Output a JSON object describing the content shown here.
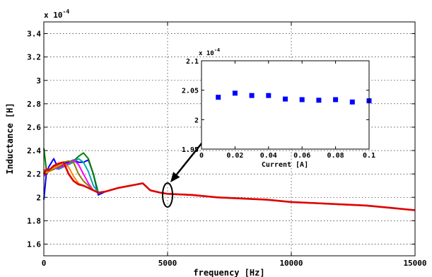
{
  "chart_data": [
    {
      "id": "main",
      "type": "line",
      "xlabel": "frequency [Hz]",
      "ylabel": "Inductance [H]",
      "exponent_label": "x 10",
      "exponent_power": "-4",
      "xlim": [
        0,
        15000
      ],
      "ylim": [
        1.5,
        3.5
      ],
      "y_scale_factor": 0.0001,
      "grid": true,
      "x_ticks": [
        0,
        5000,
        10000,
        15000
      ],
      "x_tick_labels": [
        "0",
        "5000",
        "10000",
        "15000"
      ],
      "y_ticks": [
        1.6,
        1.8,
        2.0,
        2.2,
        2.4,
        2.6,
        2.8,
        3.0,
        3.2,
        3.4
      ],
      "y_tick_labels": [
        "1.6",
        "1.8",
        "2",
        "2.2",
        "2.4",
        "2.6",
        "2.8",
        "3",
        "3.2",
        "3.4"
      ],
      "annotation": {
        "type": "ellipse",
        "x": 5000,
        "y": 2.02,
        "note": "arrow points to inset"
      },
      "series": [
        {
          "color": "#0000ff",
          "x": [
            0,
            100,
            200,
            400,
            600,
            800,
            1000,
            1200,
            1400,
            1600,
            1800,
            2000,
            2200,
            2500,
            3000,
            3500,
            4000,
            4300,
            4700,
            5000,
            6000,
            7000,
            8000,
            9000,
            10000,
            11000,
            12000,
            13000,
            14000,
            15000
          ],
          "y": [
            1.98,
            2.2,
            2.26,
            2.33,
            2.24,
            2.29,
            2.3,
            2.32,
            2.3,
            2.3,
            2.32,
            2.2,
            2.02,
            2.05,
            2.08,
            2.1,
            2.12,
            2.06,
            2.04,
            2.03,
            2.02,
            2.0,
            1.99,
            1.98,
            1.96,
            1.95,
            1.94,
            1.93,
            1.91,
            1.89
          ]
        },
        {
          "color": "#008000",
          "x": [
            0,
            100,
            200,
            400,
            600,
            800,
            1000,
            1200,
            1400,
            1600,
            1800,
            2000,
            2200,
            2500,
            3000,
            3500,
            4000,
            4300,
            4700,
            5000,
            6000,
            7000,
            8000,
            9000,
            10000,
            11000,
            12000,
            13000,
            14000,
            15000
          ],
          "y": [
            2.42,
            2.24,
            2.22,
            2.24,
            2.26,
            2.27,
            2.29,
            2.31,
            2.35,
            2.38,
            2.33,
            2.2,
            2.04,
            2.05,
            2.08,
            2.1,
            2.12,
            2.06,
            2.04,
            2.03,
            2.02,
            2.0,
            1.99,
            1.98,
            1.96,
            1.95,
            1.94,
            1.93,
            1.91,
            1.89
          ]
        },
        {
          "color": "#00aaaa",
          "x": [
            0,
            100,
            200,
            400,
            600,
            800,
            1000,
            1200,
            1400,
            1600,
            1800,
            2000,
            2200,
            2500,
            3000,
            3500,
            4000,
            4300,
            4700,
            5000,
            6000,
            7000,
            8000,
            9000,
            10000,
            11000,
            12000,
            13000,
            14000,
            15000
          ],
          "y": [
            2.2,
            2.22,
            2.24,
            2.25,
            2.24,
            2.26,
            2.28,
            2.3,
            2.33,
            2.3,
            2.22,
            2.1,
            2.04,
            2.05,
            2.08,
            2.1,
            2.12,
            2.06,
            2.04,
            2.03,
            2.02,
            2.0,
            1.99,
            1.98,
            1.96,
            1.95,
            1.94,
            1.93,
            1.91,
            1.89
          ]
        },
        {
          "color": "#ff00ff",
          "x": [
            0,
            100,
            200,
            400,
            600,
            800,
            1000,
            1200,
            1400,
            1600,
            1800,
            2000,
            2200,
            2500,
            3000,
            3500,
            4000,
            4300,
            4700,
            5000,
            6000,
            7000,
            8000,
            9000,
            10000,
            11000,
            12000,
            13000,
            14000,
            15000
          ],
          "y": [
            2.18,
            2.21,
            2.23,
            2.25,
            2.25,
            2.27,
            2.29,
            2.32,
            2.28,
            2.2,
            2.12,
            2.06,
            2.04,
            2.05,
            2.08,
            2.1,
            2.12,
            2.06,
            2.04,
            2.03,
            2.02,
            2.0,
            1.99,
            1.98,
            1.96,
            1.95,
            1.94,
            1.93,
            1.91,
            1.89
          ]
        },
        {
          "color": "#808000",
          "x": [
            0,
            100,
            200,
            400,
            600,
            800,
            1000,
            1200,
            1400,
            1600,
            1800,
            2000,
            2200,
            2500,
            3000,
            3500,
            4000,
            4300,
            4700,
            5000,
            6000,
            7000,
            8000,
            9000,
            10000,
            11000,
            12000,
            13000,
            14000,
            15000
          ],
          "y": [
            2.22,
            2.2,
            2.22,
            2.26,
            2.28,
            2.3,
            2.31,
            2.3,
            2.2,
            2.14,
            2.1,
            2.06,
            2.04,
            2.05,
            2.08,
            2.1,
            2.12,
            2.06,
            2.04,
            2.03,
            2.02,
            2.0,
            1.99,
            1.98,
            1.96,
            1.95,
            1.94,
            1.93,
            1.91,
            1.89
          ]
        },
        {
          "color": "#ff8c00",
          "x": [
            0,
            100,
            200,
            400,
            600,
            800,
            1000,
            1200,
            1400,
            1600,
            1800,
            2000,
            2200,
            2500,
            3000,
            3500,
            4000,
            4300,
            4700,
            5000,
            6000,
            7000,
            8000,
            9000,
            10000,
            11000,
            12000,
            13000,
            14000,
            15000
          ],
          "y": [
            2.24,
            2.21,
            2.22,
            2.25,
            2.27,
            2.29,
            2.26,
            2.18,
            2.12,
            2.1,
            2.08,
            2.06,
            2.04,
            2.05,
            2.08,
            2.1,
            2.12,
            2.06,
            2.04,
            2.03,
            2.02,
            2.0,
            1.99,
            1.98,
            1.96,
            1.95,
            1.94,
            1.93,
            1.91,
            1.89
          ]
        },
        {
          "color": "#e00000",
          "x": [
            0,
            100,
            200,
            400,
            600,
            800,
            1000,
            1200,
            1400,
            1600,
            1800,
            2000,
            2200,
            2500,
            3000,
            3500,
            4000,
            4300,
            4700,
            5000,
            6000,
            7000,
            8000,
            9000,
            10000,
            11000,
            12000,
            13000,
            14000,
            15000
          ],
          "y": [
            2.2,
            2.24,
            2.23,
            2.27,
            2.29,
            2.3,
            2.2,
            2.14,
            2.11,
            2.1,
            2.08,
            2.06,
            2.04,
            2.05,
            2.08,
            2.1,
            2.12,
            2.06,
            2.04,
            2.03,
            2.02,
            2.0,
            1.99,
            1.98,
            1.96,
            1.95,
            1.94,
            1.93,
            1.91,
            1.89
          ]
        }
      ]
    },
    {
      "id": "inset",
      "type": "scatter",
      "xlabel": "Current [A]",
      "ylabel": "",
      "exponent_label": "x 10",
      "exponent_power": "-4",
      "xlim": [
        0,
        0.1
      ],
      "ylim": [
        1.95,
        2.1
      ],
      "y_scale_factor": 0.0001,
      "grid": false,
      "x_ticks": [
        0,
        0.02,
        0.04,
        0.06,
        0.08,
        0.1
      ],
      "x_tick_labels": [
        "0",
        "0.02",
        "0.04",
        "0.06",
        "0.08",
        "0.1"
      ],
      "y_ticks": [
        1.95,
        2.0,
        2.05,
        2.1
      ],
      "y_tick_labels": [
        "1.95",
        "2",
        "2.05",
        "2.1"
      ],
      "marker_color": "#0000ff",
      "x": [
        0.01,
        0.02,
        0.03,
        0.04,
        0.05,
        0.06,
        0.07,
        0.08,
        0.09,
        0.1
      ],
      "y": [
        2.038,
        2.045,
        2.041,
        2.041,
        2.035,
        2.034,
        2.033,
        2.034,
        2.03,
        2.032
      ]
    }
  ]
}
